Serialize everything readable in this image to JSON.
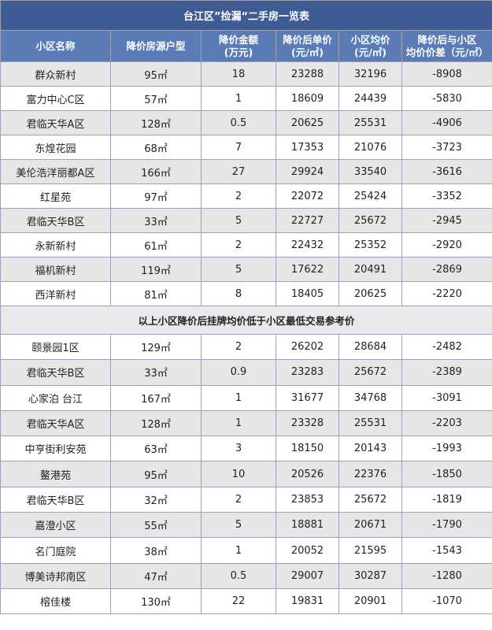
{
  "title": "台江区”捡漏“二手房一览表",
  "headers": [
    [
      "小区名称"
    ],
    [
      "降价房源户型"
    ],
    [
      "降价金额",
      "(万元)"
    ],
    [
      "降价后单价",
      "(元/㎡)"
    ],
    [
      "小区均价",
      "(元/㎡)"
    ],
    [
      "降价后与小区",
      "均价价差（元/㎡）"
    ]
  ],
  "section1": [
    [
      "群众新村",
      "95㎡",
      18,
      23288,
      32196,
      -8908
    ],
    [
      "富力中心C区",
      "57㎡",
      1,
      18609,
      24439,
      -5830
    ],
    [
      "君临天华A区",
      "128㎡",
      0.5,
      20625,
      25531,
      -4906
    ],
    [
      "东煌花园",
      "68㎡",
      7,
      17353,
      21076,
      -3723
    ],
    [
      "美伦浩洋丽都A区",
      "166㎡",
      27,
      29924,
      33540,
      -3616
    ],
    [
      "红星苑",
      "97㎡",
      2,
      22072,
      25424,
      -3352
    ],
    [
      "君临天华B区",
      "33㎡",
      5,
      22727,
      25672,
      -2945
    ],
    [
      "永新新村",
      "61㎡",
      2,
      22432,
      25352,
      -2920
    ],
    [
      "福机新村",
      "119㎡",
      5,
      17622,
      20491,
      -2869
    ],
    [
      "西洋新村",
      "81㎡",
      8,
      18405,
      20625,
      -2220
    ]
  ],
  "note": "以上小区降价后挂牌均价低于小区最低交易参考价",
  "section2": [
    [
      "颐景园1区",
      "129㎡",
      2,
      26202,
      28684,
      -2482
    ],
    [
      "君临天华B区",
      "33㎡",
      0.9,
      23283,
      25672,
      -2389
    ],
    [
      "心家泊 台江",
      "167㎡",
      1,
      31677,
      34768,
      -3091
    ],
    [
      "君临天华A区",
      "128㎡",
      1,
      23328,
      25531,
      -2203
    ],
    [
      "中亨街利安苑",
      "63㎡",
      3,
      18150,
      20143,
      -1993
    ],
    [
      "鳌港苑",
      "95㎡",
      10,
      20526,
      22376,
      -1850
    ],
    [
      "君临天华B区",
      "32㎡",
      2,
      23853,
      25672,
      -1819
    ],
    [
      "嘉澄小区",
      "55㎡",
      5,
      18881,
      20671,
      -1790
    ],
    [
      "名门庭院",
      "38㎡",
      1,
      20052,
      21595,
      -1543
    ],
    [
      "博美诗邦南区",
      "47㎡",
      0.5,
      29007,
      30287,
      -1280
    ],
    [
      "榕佳楼",
      "130㎡",
      22,
      19831,
      20901,
      -1070
    ]
  ]
}
